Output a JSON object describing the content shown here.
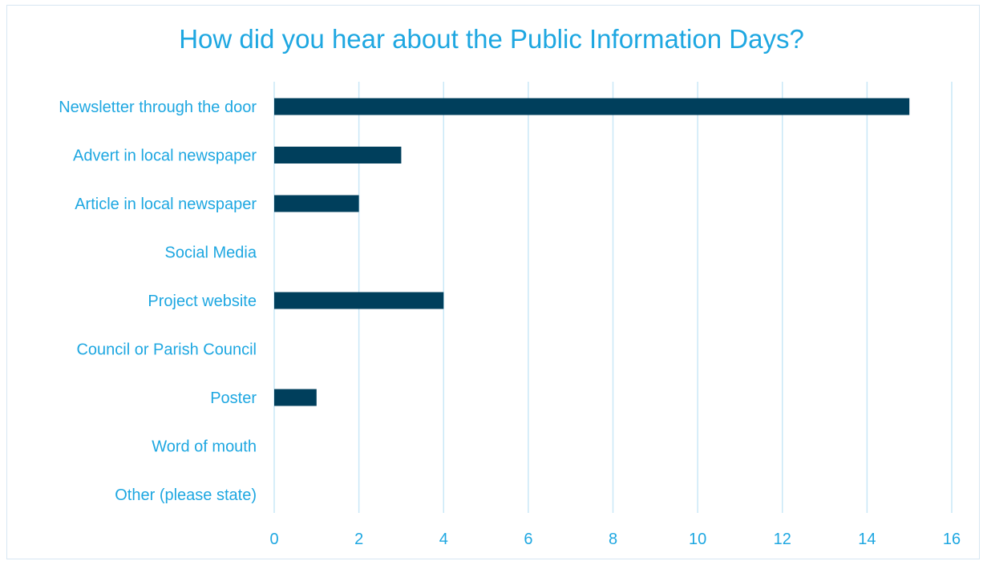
{
  "chart_data": {
    "type": "bar",
    "orientation": "horizontal",
    "title": "How did you hear about the Public Information Days?",
    "categories": [
      "Newsletter through the door",
      "Advert in local newspaper",
      "Article in local newspaper",
      "Social Media",
      "Project website",
      "Council or Parish Council",
      "Poster",
      "Word of mouth",
      "Other (please state)"
    ],
    "values": [
      15,
      3,
      2,
      0,
      4,
      0,
      1,
      0,
      0
    ],
    "xlim": [
      0,
      16
    ],
    "xticks": [
      "0",
      "2",
      "4",
      "6",
      "8",
      "10",
      "12",
      "14",
      "16"
    ],
    "xlabel": "",
    "ylabel": "",
    "grid": "vertical",
    "legend": "none",
    "bar_color": "#003f5c",
    "text_color": "#1ea7e1",
    "grid_color": "#c9e8f7"
  }
}
